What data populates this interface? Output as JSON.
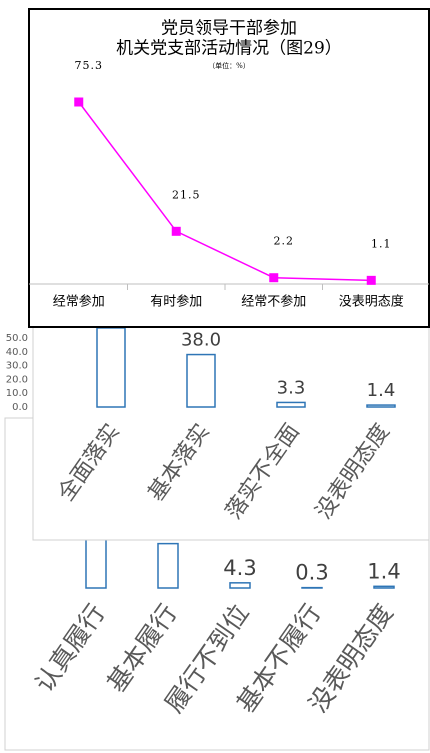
{
  "chart_data": [
    {
      "type": "line",
      "title": "党员领导干部参加",
      "subtitle": "机关党支部活动情况（图29）",
      "unit": "（单位：%）",
      "categories": [
        "经常参加",
        "有时参加",
        "经常不参加",
        "没表明态度"
      ],
      "values": [
        75.3,
        21.5,
        2.2,
        1.1
      ],
      "color": "#ff00ff"
    },
    {
      "type": "bar",
      "categories": [
        "全面落实",
        "基本落实",
        "落实不全面",
        "没表明态度"
      ],
      "values": [
        57.3,
        38.0,
        3.3,
        1.4
      ],
      "value_labels": [
        null,
        "38.0",
        "3.3",
        "1.4"
      ],
      "color": "#2e75b6",
      "ylim": [
        0,
        60
      ],
      "yticks": [
        {
          "value": 0,
          "label": "0.0"
        },
        {
          "value": 10,
          "label": "10.0"
        },
        {
          "value": 20,
          "label": "20.0"
        },
        {
          "value": 30,
          "label": "30.0"
        },
        {
          "value": 40,
          "label": "40.0"
        },
        {
          "value": 50,
          "label": "50.0"
        }
      ]
    },
    {
      "type": "bar",
      "categories": [
        "认真履行",
        "基本履行",
        "履行不到位",
        "基本不履行",
        "没表明态度"
      ],
      "values": [
        56.7,
        37.0,
        4.3,
        0.3,
        1.4
      ],
      "value_labels": [
        null,
        null,
        "4.3",
        "0.3",
        "1.4"
      ],
      "color": "#2e75b6"
    }
  ]
}
